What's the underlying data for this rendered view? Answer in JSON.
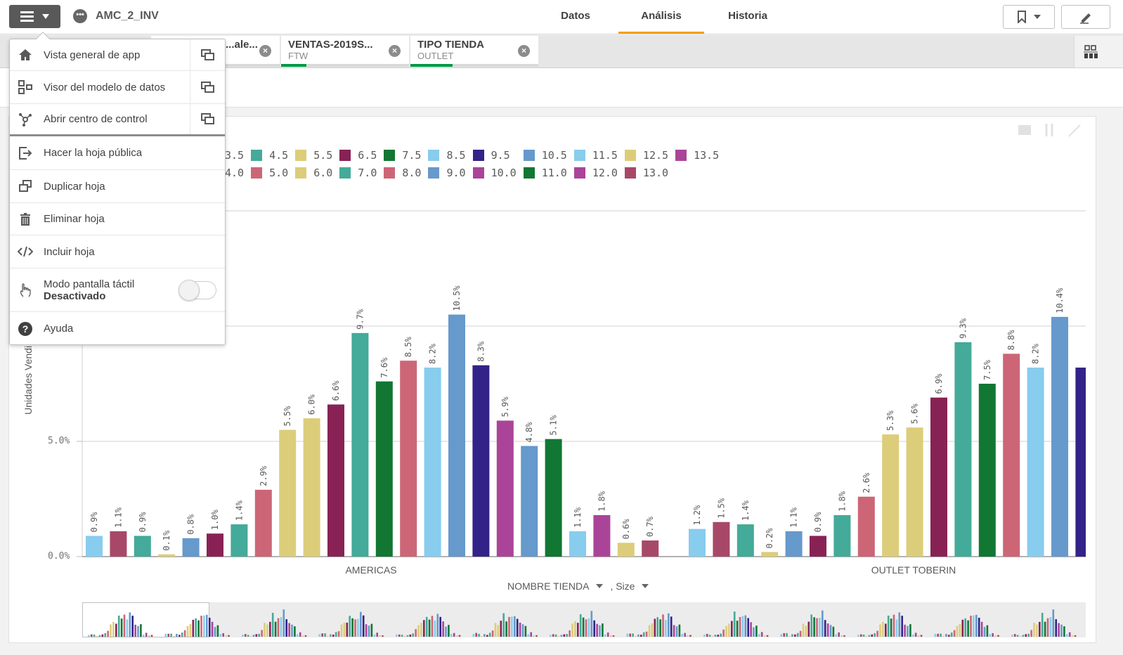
{
  "app": {
    "title": "AMC_2_INV",
    "menu_icon": "hamburger-icon"
  },
  "nav": {
    "tabs": [
      {
        "label": "Datos"
      },
      {
        "label": "Análisis",
        "active": true
      },
      {
        "label": "Historia"
      }
    ],
    "accent": "#f0a020"
  },
  "selections": [
    {
      "title": "...ale...",
      "value": ""
    },
    {
      "title": "VENTAS-2019S...",
      "value": "FTW"
    },
    {
      "title": "TIPO TIENDA",
      "value": "OUTLET"
    }
  ],
  "menu": {
    "items": [
      {
        "label": "Vista general de app",
        "icon": "home-icon",
        "new_tab": true
      },
      {
        "label": "Visor del modelo de datos",
        "icon": "data-model-icon",
        "new_tab": true
      },
      {
        "label": "Abrir centro de control",
        "icon": "hub-icon",
        "new_tab": true
      },
      {
        "label": "Hacer la hoja pública",
        "icon": "publish-icon"
      },
      {
        "label": "Duplicar hoja",
        "icon": "duplicate-icon"
      },
      {
        "label": "Eliminar hoja",
        "icon": "trash-icon"
      },
      {
        "label": "Incluir hoja",
        "icon": "embed-code-icon"
      },
      {
        "label": "Modo pantalla táctil",
        "sub": "Desactivado",
        "icon": "touch-icon",
        "toggle": false
      },
      {
        "label": "Ayuda",
        "icon": "help-icon"
      }
    ]
  },
  "chart_data": {
    "type": "bar",
    "ylabel": "Unidades Vendi",
    "xlabel": "NOMBRE TIENDA",
    "xlabel2": ", Size",
    "ylim": [
      0,
      15
    ],
    "yticks": [
      "0.0%",
      "5.0%"
    ],
    "grid": true,
    "legend_position": "top",
    "legend": [
      {
        "label": "3.5",
        "color": "#6699cc"
      },
      {
        "label": "4.0",
        "color": "#882255"
      },
      {
        "label": "4.5",
        "color": "#44aa99"
      },
      {
        "label": "5.0",
        "color": "#cc6677"
      },
      {
        "label": "5.5",
        "color": "#dccd7a"
      },
      {
        "label": "6.0",
        "color": "#dccd7a"
      },
      {
        "label": "6.5",
        "color": "#882255"
      },
      {
        "label": "7.0",
        "color": "#44aa99"
      },
      {
        "label": "7.5",
        "color": "#117733"
      },
      {
        "label": "8.0",
        "color": "#cc6677"
      },
      {
        "label": "8.5",
        "color": "#88ccee"
      },
      {
        "label": "9.0",
        "color": "#6699cc"
      },
      {
        "label": "9.5",
        "color": "#332288"
      },
      {
        "label": "10.0",
        "color": "#aa4499"
      },
      {
        "label": "10.5",
        "color": "#6699cc"
      },
      {
        "label": "11.0",
        "color": "#117733"
      },
      {
        "label": "11.5",
        "color": "#88ccee"
      },
      {
        "label": "12.0",
        "color": "#aa4499"
      },
      {
        "label": "12.5",
        "color": "#dccd7a"
      },
      {
        "label": "13.0",
        "color": "#a84868"
      },
      {
        "label": "13.5",
        "color": "#aa4499"
      }
    ],
    "groups": [
      {
        "name": "AMERICAS",
        "values": [
          0.9,
          1.1,
          0.9,
          0.1,
          0.8,
          1.0,
          1.4,
          2.9,
          5.5,
          6.0,
          6.6,
          9.7,
          7.6,
          8.5,
          8.2,
          10.5,
          8.3,
          5.9,
          4.8,
          5.1,
          1.1,
          1.8,
          0.6,
          0.7
        ],
        "labels": [
          "0.9%",
          "1.1%",
          "0.9%",
          "0.1%",
          "0.8%",
          "1.0%",
          "1.4%",
          "2.9%",
          "5.5%",
          "6.0%",
          "6.6%",
          "9.7%",
          "7.6%",
          "8.5%",
          "8.2%",
          "10.5%",
          "8.3%",
          "5.9%",
          "4.8%",
          "5.1%",
          "1.1%",
          "1.8%",
          "0.6%",
          "0.7%"
        ],
        "colors": [
          "#88ccee",
          "#a84868",
          "#44aa99",
          "#dccd7a",
          "#6699cc",
          "#882255",
          "#44aa99",
          "#cc6677",
          "#dccd7a",
          "#dccd7a",
          "#882255",
          "#44aa99",
          "#117733",
          "#cc6677",
          "#88ccee",
          "#6699cc",
          "#332288",
          "#aa4499",
          "#6699cc",
          "#117733",
          "#88ccee",
          "#aa4499",
          "#dccd7a",
          "#a84868"
        ]
      },
      {
        "name": "OUTLET TOBERIN",
        "values": [
          1.2,
          1.5,
          1.4,
          0.2,
          1.1,
          0.9,
          1.8,
          2.6,
          5.3,
          5.6,
          6.9,
          9.3,
          7.5,
          8.8,
          8.2,
          10.4,
          8.2
        ],
        "labels": [
          "1.2%",
          "1.5%",
          "1.4%",
          "0.2%",
          "1.1%",
          "0.9%",
          "1.8%",
          "2.6%",
          "5.3%",
          "5.6%",
          "6.9%",
          "9.3%",
          "7.5%",
          "8.8%",
          "8.2%",
          "10.4%",
          ""
        ],
        "colors": [
          "#88ccee",
          "#a84868",
          "#44aa99",
          "#dccd7a",
          "#6699cc",
          "#882255",
          "#44aa99",
          "#cc6677",
          "#dccd7a",
          "#dccd7a",
          "#882255",
          "#44aa99",
          "#117733",
          "#cc6677",
          "#88ccee",
          "#6699cc",
          "#332288"
        ]
      }
    ]
  }
}
